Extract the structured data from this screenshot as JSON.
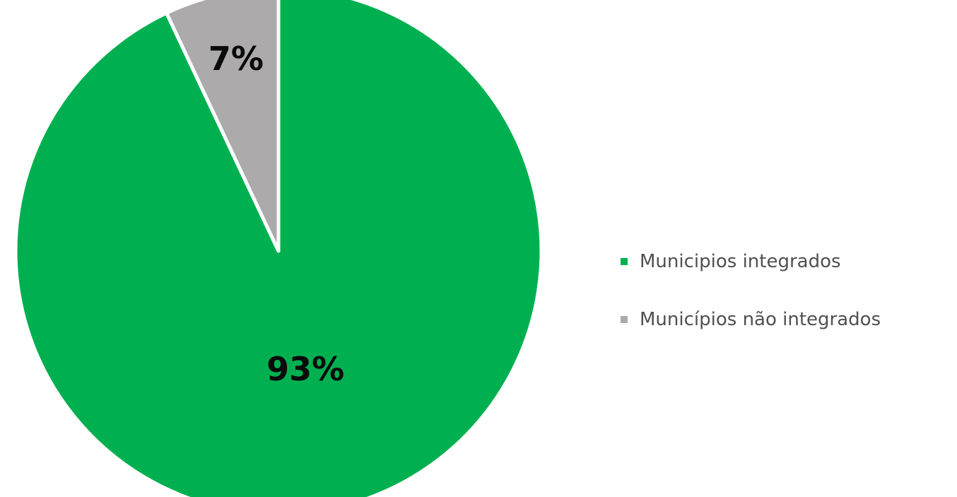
{
  "chart_data": {
    "type": "pie",
    "title": "",
    "series": [
      {
        "name": "Municipios integrados",
        "value": 93,
        "label": "93%",
        "color": "#00b050"
      },
      {
        "name": "Municípios não integrados",
        "value": 7,
        "label": "7%",
        "color": "#acaaaa"
      }
    ],
    "start_angle": "12 o'clock",
    "direction": "clockwise",
    "legend_position": "right"
  }
}
